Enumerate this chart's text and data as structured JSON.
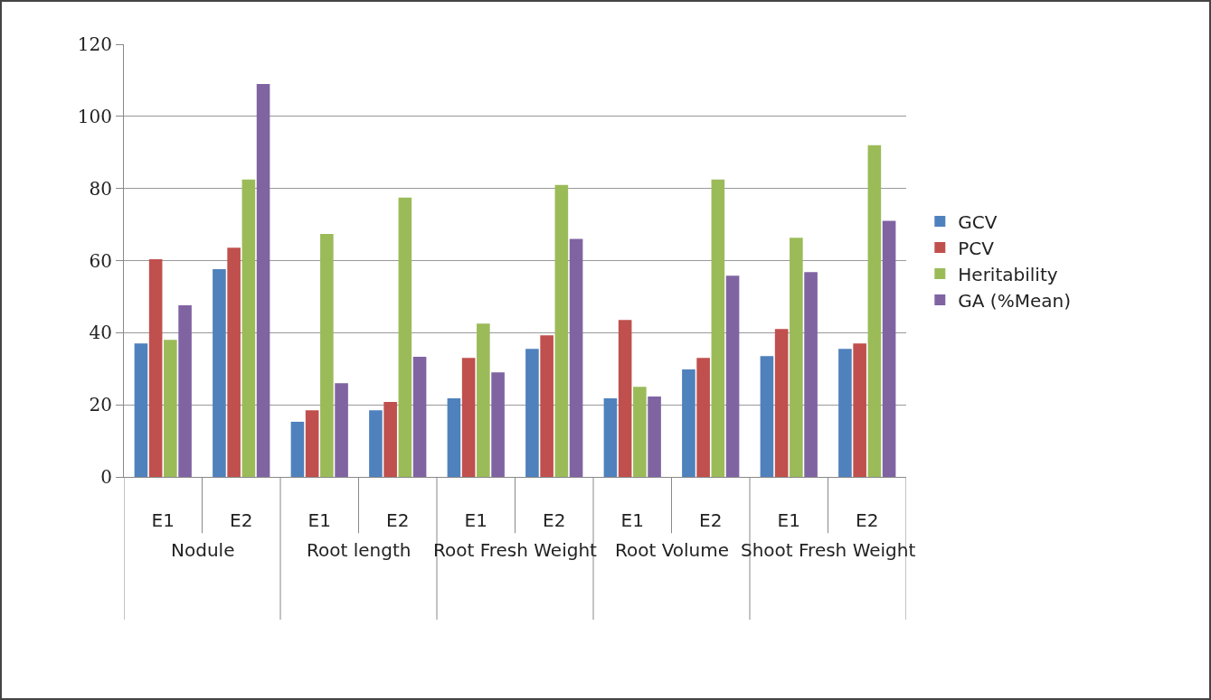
{
  "chart_data": {
    "type": "bar",
    "categories": [
      "E1",
      "E2",
      "E1",
      "E2",
      "E1",
      "E2",
      "E1",
      "E2",
      "E1",
      "E2"
    ],
    "annotations": [
      "Nodule",
      "Root length",
      "Root Fresh Weight",
      "Root Volume",
      "Shoot Fresh Weight"
    ],
    "series": [
      {
        "name": "GCV",
        "color": "#4f81bd",
        "values": [
          37,
          57.6,
          15.3,
          18.5,
          21.8,
          35.5,
          21.8,
          29.8,
          33.5,
          35.5
        ]
      },
      {
        "name": "PCV",
        "color": "#c0504d",
        "values": [
          60.4,
          63.6,
          18.5,
          20.8,
          33,
          39.3,
          43.5,
          33,
          41,
          37
        ]
      },
      {
        "name": "Heritability",
        "color": "#9bbb59",
        "values": [
          38,
          82.5,
          67.4,
          77.5,
          42.5,
          81,
          25,
          82.5,
          66.3,
          92
        ]
      },
      {
        "name": "GA (%Mean)",
        "color": "#8064a2",
        "values": [
          47.6,
          109,
          26,
          33.3,
          29,
          66,
          22.3,
          55.8,
          56.8,
          71
        ]
      }
    ],
    "ylim": [
      0,
      120
    ],
    "yticks": [
      0,
      20,
      40,
      60,
      80,
      100,
      120
    ],
    "grid": "y",
    "legend": "right"
  }
}
